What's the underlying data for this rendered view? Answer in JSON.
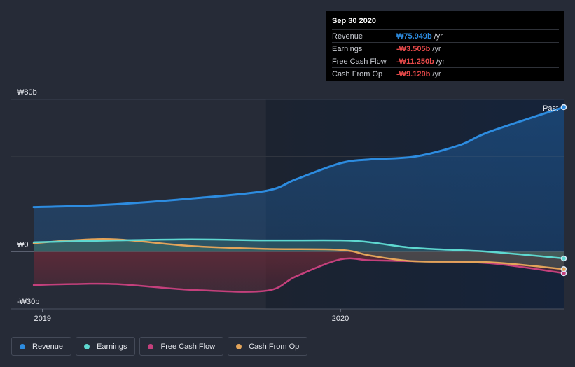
{
  "tooltip": {
    "date": "Sep 30 2020",
    "rows": [
      {
        "label": "Revenue",
        "value": "₩75.949b",
        "unit": "/yr",
        "color": "#2d8ce0"
      },
      {
        "label": "Earnings",
        "value": "-₩3.505b",
        "unit": "/yr",
        "color": "#e84a4a"
      },
      {
        "label": "Free Cash Flow",
        "value": "-₩11.250b",
        "unit": "/yr",
        "color": "#e84a4a"
      },
      {
        "label": "Cash From Op",
        "value": "-₩9.120b",
        "unit": "/yr",
        "color": "#e84a4a"
      }
    ]
  },
  "past_label": "Past",
  "legend": [
    {
      "label": "Revenue",
      "color": "#2d8ce0"
    },
    {
      "label": "Earnings",
      "color": "#5ed8d0"
    },
    {
      "label": "Free Cash Flow",
      "color": "#c4407c"
    },
    {
      "label": "Cash From Op",
      "color": "#e3a45a"
    }
  ],
  "chart_data": {
    "type": "line",
    "title": "",
    "xlabel": "",
    "ylabel": "",
    "ylim": [
      -30,
      80
    ],
    "y_ticks": [
      {
        "value": 80,
        "label": "₩80b"
      },
      {
        "value": 0,
        "label": "₩0"
      },
      {
        "value": -30,
        "label": "-₩30b"
      }
    ],
    "x_range": [
      2018.97,
      2020.75
    ],
    "x_ticks": [
      {
        "value": 2019,
        "label": "2019"
      },
      {
        "value": 2020,
        "label": "2020"
      }
    ],
    "past_start": 2019.75,
    "units": "₩ billions",
    "series": [
      {
        "name": "Revenue",
        "color": "#2d8ce0",
        "points": [
          [
            2018.97,
            23.5
          ],
          [
            2019.1,
            24.0
          ],
          [
            2019.25,
            25.0
          ],
          [
            2019.5,
            28.0
          ],
          [
            2019.75,
            32.0
          ],
          [
            2019.85,
            38.0
          ],
          [
            2020.0,
            46.5
          ],
          [
            2020.1,
            48.5
          ],
          [
            2020.25,
            50.0
          ],
          [
            2020.4,
            56.0
          ],
          [
            2020.5,
            63.0
          ],
          [
            2020.75,
            75.949
          ]
        ]
      },
      {
        "name": "Earnings",
        "color": "#5ed8d0",
        "points": [
          [
            2018.97,
            5.0
          ],
          [
            2019.25,
            6.0
          ],
          [
            2019.5,
            6.5
          ],
          [
            2019.75,
            6.0
          ],
          [
            2020.0,
            6.0
          ],
          [
            2020.1,
            5.0
          ],
          [
            2020.25,
            2.0
          ],
          [
            2020.5,
            0.0
          ],
          [
            2020.75,
            -3.505
          ]
        ]
      },
      {
        "name": "Free Cash Flow",
        "color": "#c4407c",
        "points": [
          [
            2018.97,
            -17.5
          ],
          [
            2019.1,
            -17.0
          ],
          [
            2019.25,
            -17.0
          ],
          [
            2019.5,
            -20.0
          ],
          [
            2019.75,
            -20.5
          ],
          [
            2019.85,
            -13.0
          ],
          [
            2020.0,
            -4.0
          ],
          [
            2020.1,
            -4.5
          ],
          [
            2020.25,
            -5.0
          ],
          [
            2020.5,
            -6.0
          ],
          [
            2020.75,
            -11.25
          ]
        ]
      },
      {
        "name": "Cash From Op",
        "color": "#e3a45a",
        "points": [
          [
            2018.97,
            4.5
          ],
          [
            2019.1,
            6.0
          ],
          [
            2019.25,
            6.5
          ],
          [
            2019.5,
            3.0
          ],
          [
            2019.75,
            1.5
          ],
          [
            2020.0,
            1.0
          ],
          [
            2020.1,
            -2.0
          ],
          [
            2020.25,
            -5.0
          ],
          [
            2020.5,
            -5.5
          ],
          [
            2020.75,
            -9.12
          ]
        ]
      }
    ]
  }
}
